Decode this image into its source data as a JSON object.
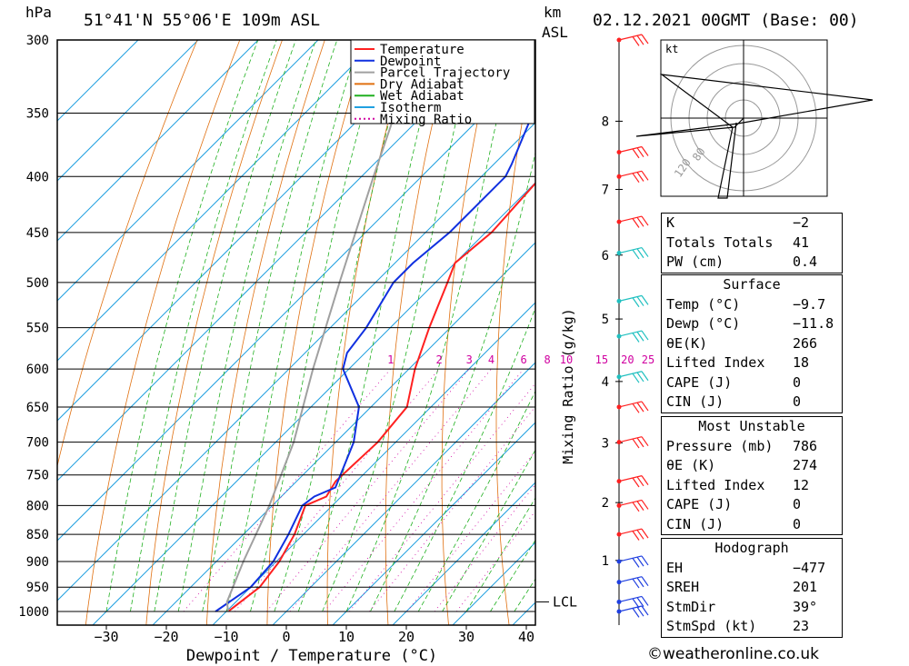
{
  "header": {
    "pressure_unit": "hPa",
    "location": "51°41'N  55°06'E  109m  ASL",
    "height_unit_line1": "km",
    "height_unit_line2": "ASL",
    "datetime": "02.12.2021  00GMT  (Base: 00)"
  },
  "chart_data": {
    "type": "line",
    "title": "",
    "xlabel": "Dewpoint / Temperature (°C)",
    "ylabel": "hPa",
    "mixing_ratio_axis_label": "Mixing Ratio (g/kg)",
    "pressure_levels": [
      300,
      350,
      400,
      450,
      500,
      550,
      600,
      650,
      700,
      750,
      800,
      850,
      900,
      950,
      1000
    ],
    "pressure_tick_labels": [
      "300",
      "350",
      "400",
      "450",
      "500",
      "550",
      "600",
      "650",
      "700",
      "750",
      "800",
      "850",
      "900",
      "950",
      "1000"
    ],
    "temperature_ticks": [
      -30,
      -20,
      -10,
      0,
      10,
      20,
      30,
      40
    ],
    "temperature_tick_labels": [
      "−30",
      "−20",
      "−10",
      "0",
      "10",
      "20",
      "30",
      "40"
    ],
    "temperature_range": [
      -40,
      41
    ],
    "height_ticks_km": [
      "8",
      "7",
      "6",
      "5",
      "4",
      "3",
      "2",
      "1"
    ],
    "mixing_ratio_labels": [
      "1",
      "2",
      "3",
      "4",
      "6",
      "8",
      "10",
      "15",
      "20",
      "25"
    ],
    "lcl_label": "LCL",
    "lcl_pressure": 980,
    "legend": [
      "Temperature",
      "Dewpoint",
      "Parcel Trajectory",
      "Dry Adiabat",
      "Wet Adiabat",
      "Isotherm",
      "Mixing Ratio"
    ],
    "legend_position": "top-right",
    "colors": {
      "temperature": "#ff2020",
      "dewpoint": "#1030e0",
      "parcel": "#a0a0a0",
      "dry_adiabat": "#e07010",
      "wet_adiabat": "#20b020",
      "isotherm": "#20a0e0",
      "mixing_ratio": "#d000a0"
    },
    "series": [
      {
        "name": "Temperature",
        "points": [
          [
            1000,
            -9.7
          ],
          [
            950,
            -8.5
          ],
          [
            900,
            -9.5
          ],
          [
            850,
            -11.5
          ],
          [
            800,
            -14.5
          ],
          [
            785,
            -12.5
          ],
          [
            760,
            -13.5
          ],
          [
            700,
            -13
          ],
          [
            650,
            -14
          ],
          [
            600,
            -19
          ],
          [
            550,
            -23.5
          ],
          [
            500,
            -28
          ],
          [
            480,
            -30
          ],
          [
            450,
            -29
          ],
          [
            400,
            -30
          ],
          [
            350,
            -36
          ],
          [
            300,
            -43
          ]
        ]
      },
      {
        "name": "Dewpoint",
        "points": [
          [
            1000,
            -11.8
          ],
          [
            950,
            -10
          ],
          [
            900,
            -10.5
          ],
          [
            850,
            -12.5
          ],
          [
            800,
            -15
          ],
          [
            785,
            -14.5
          ],
          [
            770,
            -12.5
          ],
          [
            700,
            -17
          ],
          [
            650,
            -22
          ],
          [
            600,
            -31
          ],
          [
            580,
            -33
          ],
          [
            550,
            -34
          ],
          [
            500,
            -37
          ],
          [
            480,
            -37
          ],
          [
            450,
            -36
          ],
          [
            400,
            -36
          ],
          [
            390,
            -37
          ],
          [
            350,
            -42
          ],
          [
            300,
            -50
          ]
        ]
      },
      {
        "name": "Parcel Trajectory",
        "points": [
          [
            1000,
            -9.7
          ],
          [
            980,
            -11.5
          ],
          [
            900,
            -15.5
          ],
          [
            800,
            -20.5
          ],
          [
            700,
            -27
          ],
          [
            600,
            -36
          ],
          [
            500,
            -46
          ],
          [
            400,
            -58
          ],
          [
            300,
            -73
          ]
        ]
      }
    ]
  },
  "hodograph": {
    "unit": "kt",
    "ring_labels": [
      "120",
      "80"
    ]
  },
  "indices": {
    "rows": [
      {
        "label": "K",
        "value": "−2"
      },
      {
        "label": "Totals Totals",
        "value": "41"
      },
      {
        "label": "PW (cm)",
        "value": "0.4"
      }
    ]
  },
  "surface": {
    "title": "Surface",
    "rows": [
      {
        "label": "Temp (°C)",
        "value": "−9.7"
      },
      {
        "label": "Dewp (°C)",
        "value": "−11.8"
      },
      {
        "label": "θE(K)",
        "value": "266"
      },
      {
        "label": "Lifted Index",
        "value": "18"
      },
      {
        "label": "CAPE (J)",
        "value": "0"
      },
      {
        "label": "CIN (J)",
        "value": "0"
      }
    ]
  },
  "most_unstable": {
    "title": "Most Unstable",
    "rows": [
      {
        "label": "Pressure (mb)",
        "value": "786"
      },
      {
        "label": "θE (K)",
        "value": "274"
      },
      {
        "label": "Lifted Index",
        "value": "12"
      },
      {
        "label": "CAPE (J)",
        "value": "0"
      },
      {
        "label": "CIN (J)",
        "value": "0"
      }
    ]
  },
  "hodograph_table": {
    "title": "Hodograph",
    "rows": [
      {
        "label": "EH",
        "value": "−477"
      },
      {
        "label": "SREH",
        "value": "201"
      },
      {
        "label": "StmDir",
        "value": "39°"
      },
      {
        "label": "StmSpd (kt)",
        "value": "23"
      }
    ]
  },
  "footer": "©weatheronline.co.uk"
}
